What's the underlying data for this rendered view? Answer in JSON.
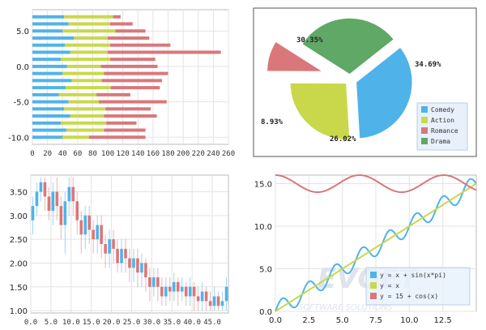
{
  "colors": {
    "blue": "#4fb3ea",
    "yellow": "#c9d84a",
    "red": "#d9777a",
    "green": "#5fa866",
    "grid": "#e3e3e3",
    "axis": "#999999",
    "frame": "#7a7a7a"
  },
  "watermark": {
    "brand": "EVGET",
    "tagline": "SOFTWARE SOLUTIONS"
  },
  "chart_data": [
    {
      "type": "bar",
      "orientation": "horizontal",
      "stacked": true,
      "y_ticks": [
        "5.0",
        "0.0",
        "-5.0",
        "-10.0"
      ],
      "x_ticks": [
        "0",
        "20",
        "40",
        "60",
        "80",
        "100",
        "120",
        "140",
        "160",
        "180",
        "200",
        "220",
        "240",
        "260"
      ],
      "xlim": [
        0,
        260
      ],
      "ylim": [
        -11,
        8
      ],
      "categories": [
        -10,
        -9,
        -8,
        -7,
        -6,
        -5,
        -4,
        -3,
        -2,
        -1,
        0,
        1,
        2,
        3,
        4,
        5,
        6,
        7
      ],
      "series": [
        {
          "values": [
            40,
            45,
            38,
            50,
            42,
            48,
            35,
            44,
            52,
            40,
            46,
            38,
            50,
            43,
            55,
            40,
            48,
            42
          ]
        },
        {
          "values": [
            35,
            50,
            60,
            45,
            55,
            40,
            50,
            60,
            40,
            55,
            45,
            65,
            50,
            60,
            45,
            70,
            55,
            65
          ]
        },
        {
          "values": [
            75,
            55,
            40,
            70,
            60,
            90,
            45,
            65,
            80,
            85,
            75,
            60,
            150,
            80,
            55,
            40,
            30,
            10
          ]
        }
      ],
      "grid": true
    },
    {
      "type": "pie",
      "exploded": true,
      "labels": [
        "30.35%",
        "34.69%",
        "26.02%",
        "8.93%"
      ],
      "values": [
        30.35,
        34.69,
        26.02,
        8.93
      ],
      "legend": [
        "Comedy",
        "Action",
        "Romance",
        "Drama"
      ],
      "legend_position": "bottom-right"
    },
    {
      "type": "candlestick",
      "x_ticks": [
        "0.0",
        "5.0",
        "10.0",
        "15.0",
        "20.0",
        "25.0",
        "30.0",
        "35.0",
        "40.0",
        "45.0"
      ],
      "y_ticks": [
        "1.00",
        "1.50",
        "2.00",
        "2.50",
        "3.00",
        "3.50"
      ],
      "xlim": [
        0,
        49
      ],
      "ylim": [
        0.95,
        3.85
      ],
      "grid": true,
      "candles": [
        {
          "x": 0,
          "o": 2.9,
          "c": 3.2,
          "h": 3.4,
          "l": 2.6
        },
        {
          "x": 1,
          "o": 3.2,
          "c": 3.5,
          "h": 3.7,
          "l": 3.0
        },
        {
          "x": 2,
          "o": 3.5,
          "c": 3.7,
          "h": 3.8,
          "l": 3.3
        },
        {
          "x": 3,
          "o": 3.7,
          "c": 3.4,
          "h": 3.8,
          "l": 3.1
        },
        {
          "x": 4,
          "o": 3.4,
          "c": 3.1,
          "h": 3.6,
          "l": 2.9
        },
        {
          "x": 5,
          "o": 3.1,
          "c": 3.5,
          "h": 3.7,
          "l": 2.8
        },
        {
          "x": 6,
          "o": 3.5,
          "c": 3.2,
          "h": 3.8,
          "l": 2.9
        },
        {
          "x": 7,
          "o": 3.2,
          "c": 2.8,
          "h": 3.4,
          "l": 2.5
        },
        {
          "x": 8,
          "o": 2.8,
          "c": 3.3,
          "h": 3.5,
          "l": 2.2
        },
        {
          "x": 9,
          "o": 3.3,
          "c": 3.6,
          "h": 3.8,
          "l": 3.0
        },
        {
          "x": 10,
          "o": 3.6,
          "c": 3.3,
          "h": 3.8,
          "l": 3.0
        },
        {
          "x": 11,
          "o": 3.3,
          "c": 2.9,
          "h": 3.5,
          "l": 2.6
        },
        {
          "x": 12,
          "o": 2.9,
          "c": 2.6,
          "h": 3.1,
          "l": 2.2
        },
        {
          "x": 13,
          "o": 2.6,
          "c": 3.0,
          "h": 3.2,
          "l": 2.3
        },
        {
          "x": 14,
          "o": 3.0,
          "c": 2.7,
          "h": 3.2,
          "l": 2.4
        },
        {
          "x": 15,
          "o": 2.7,
          "c": 2.5,
          "h": 2.9,
          "l": 2.2
        },
        {
          "x": 16,
          "o": 2.5,
          "c": 2.8,
          "h": 3.0,
          "l": 2.2
        },
        {
          "x": 17,
          "o": 2.8,
          "c": 2.4,
          "h": 3.0,
          "l": 2.1
        },
        {
          "x": 18,
          "o": 2.4,
          "c": 2.2,
          "h": 2.6,
          "l": 1.9
        },
        {
          "x": 19,
          "o": 2.2,
          "c": 2.5,
          "h": 2.7,
          "l": 1.9
        },
        {
          "x": 20,
          "o": 2.5,
          "c": 2.3,
          "h": 2.7,
          "l": 2.0
        },
        {
          "x": 21,
          "o": 2.3,
          "c": 2.0,
          "h": 2.5,
          "l": 1.8
        },
        {
          "x": 22,
          "o": 2.0,
          "c": 2.3,
          "h": 2.5,
          "l": 1.8
        },
        {
          "x": 23,
          "o": 2.3,
          "c": 2.1,
          "h": 2.5,
          "l": 1.8
        },
        {
          "x": 24,
          "o": 2.1,
          "c": 1.9,
          "h": 2.3,
          "l": 1.6
        },
        {
          "x": 25,
          "o": 1.9,
          "c": 2.1,
          "h": 2.3,
          "l": 1.6
        },
        {
          "x": 26,
          "o": 2.1,
          "c": 1.8,
          "h": 2.3,
          "l": 1.5
        },
        {
          "x": 27,
          "o": 1.8,
          "c": 2.0,
          "h": 2.2,
          "l": 1.5
        },
        {
          "x": 28,
          "o": 2.0,
          "c": 1.7,
          "h": 2.1,
          "l": 1.4
        },
        {
          "x": 29,
          "o": 1.7,
          "c": 1.5,
          "h": 1.9,
          "l": 1.2
        },
        {
          "x": 30,
          "o": 1.5,
          "c": 1.7,
          "h": 1.9,
          "l": 1.3
        },
        {
          "x": 31,
          "o": 1.7,
          "c": 1.5,
          "h": 1.9,
          "l": 1.2
        },
        {
          "x": 32,
          "o": 1.5,
          "c": 1.3,
          "h": 1.7,
          "l": 1.1
        },
        {
          "x": 33,
          "o": 1.3,
          "c": 1.5,
          "h": 1.7,
          "l": 1.1
        },
        {
          "x": 34,
          "o": 1.5,
          "c": 1.4,
          "h": 1.7,
          "l": 1.2
        },
        {
          "x": 35,
          "o": 1.4,
          "c": 1.6,
          "h": 1.8,
          "l": 1.2
        },
        {
          "x": 36,
          "o": 1.6,
          "c": 1.4,
          "h": 1.7,
          "l": 1.1
        },
        {
          "x": 37,
          "o": 1.4,
          "c": 1.5,
          "h": 1.7,
          "l": 1.2
        },
        {
          "x": 38,
          "o": 1.5,
          "c": 1.3,
          "h": 1.6,
          "l": 1.1
        },
        {
          "x": 39,
          "o": 1.3,
          "c": 1.5,
          "h": 1.7,
          "l": 1.1
        },
        {
          "x": 40,
          "o": 1.5,
          "c": 1.3,
          "h": 1.6,
          "l": 1.0
        },
        {
          "x": 41,
          "o": 1.3,
          "c": 1.2,
          "h": 1.5,
          "l": 1.0
        },
        {
          "x": 42,
          "o": 1.2,
          "c": 1.4,
          "h": 1.6,
          "l": 1.0
        },
        {
          "x": 43,
          "o": 1.4,
          "c": 1.2,
          "h": 1.5,
          "l": 1.0
        },
        {
          "x": 44,
          "o": 1.2,
          "c": 1.1,
          "h": 1.4,
          "l": 1.0
        },
        {
          "x": 45,
          "o": 1.1,
          "c": 1.3,
          "h": 1.5,
          "l": 1.0
        },
        {
          "x": 46,
          "o": 1.3,
          "c": 1.1,
          "h": 1.4,
          "l": 1.0
        },
        {
          "x": 47,
          "o": 1.1,
          "c": 1.2,
          "h": 1.4,
          "l": 1.0
        },
        {
          "x": 48,
          "o": 1.2,
          "c": 1.5,
          "h": 1.7,
          "l": 1.0
        }
      ]
    },
    {
      "type": "line",
      "x_ticks": [
        "0.0",
        "2.5",
        "5.0",
        "7.5",
        "10.0",
        "12.5"
      ],
      "y_ticks": [
        "0.0",
        "5.0",
        "10.0",
        "15.0"
      ],
      "xlim": [
        0,
        15
      ],
      "ylim": [
        0,
        16
      ],
      "grid": true,
      "legend_position": "bottom-right",
      "series": [
        {
          "name": "y = x + sin(x*pi)",
          "color": "blue",
          "formula": "x+sin(x*pi)"
        },
        {
          "name": "y = x",
          "color": "yellow",
          "formula": "x"
        },
        {
          "name": "y = 15 + cos(x)",
          "color": "red",
          "formula": "15+cos(x)"
        }
      ]
    }
  ]
}
